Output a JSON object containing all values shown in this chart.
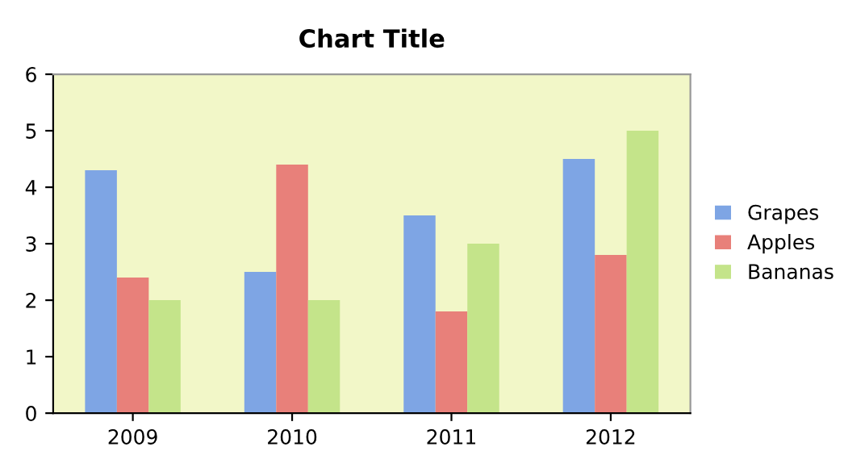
{
  "chart_data": {
    "type": "bar",
    "title": "Chart Title",
    "categories": [
      "2009",
      "2010",
      "2011",
      "2012"
    ],
    "series": [
      {
        "name": "Grapes",
        "color": "#7ea5e4",
        "values": [
          4.3,
          2.5,
          3.5,
          4.5
        ]
      },
      {
        "name": "Apples",
        "color": "#e8807a",
        "values": [
          2.4,
          4.4,
          1.8,
          2.8
        ]
      },
      {
        "name": "Bananas",
        "color": "#c4e48a",
        "values": [
          2,
          2,
          3,
          5
        ]
      }
    ],
    "ylim": [
      0,
      6
    ],
    "yticks": [
      0,
      1,
      2,
      3,
      4,
      5,
      6
    ],
    "grid": false,
    "legend": "right"
  }
}
